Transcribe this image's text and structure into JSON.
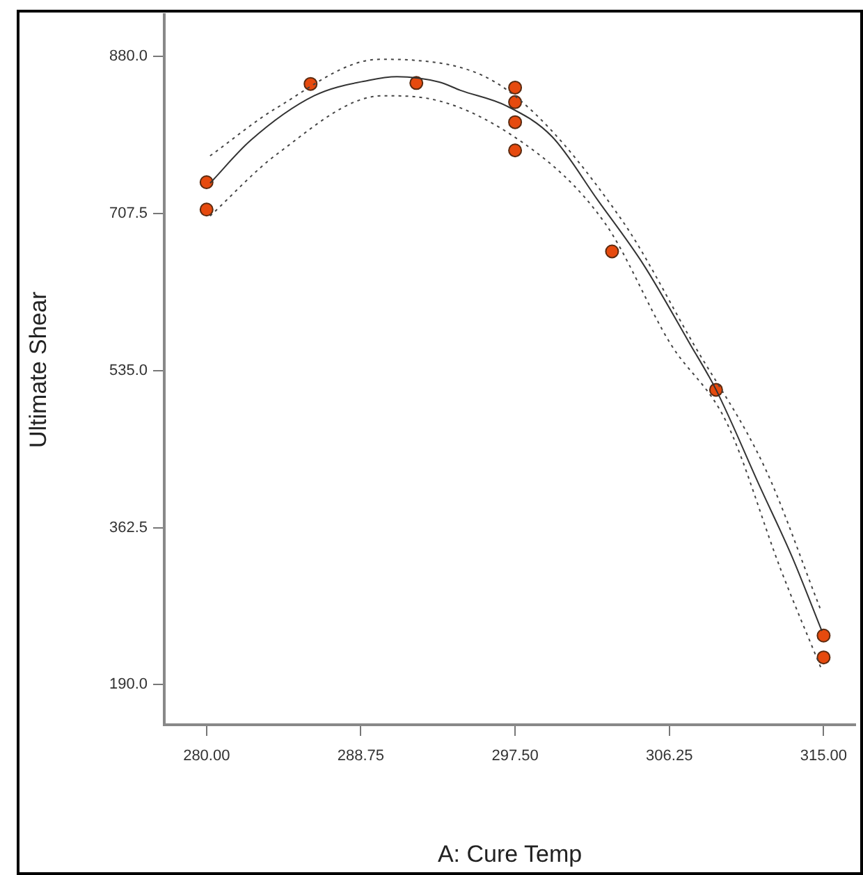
{
  "chart_data": {
    "type": "scatter",
    "xlabel": "A: Cure Temp",
    "ylabel": "Ultimate Shear",
    "xlim": [
      277.6,
      316.8
    ],
    "ylim": [
      146,
      926
    ],
    "xticks": [
      {
        "value": 280,
        "label": "280.00"
      },
      {
        "value": 288.75,
        "label": "288.75"
      },
      {
        "value": 297.5,
        "label": "297.50"
      },
      {
        "value": 306.25,
        "label": "306.25"
      },
      {
        "value": 315,
        "label": "315.00"
      }
    ],
    "yticks": [
      {
        "value": 190,
        "label": "190.0"
      },
      {
        "value": 362.5,
        "label": "362.5"
      },
      {
        "value": 535,
        "label": "535.0"
      },
      {
        "value": 707.5,
        "label": "707.5"
      },
      {
        "value": 880,
        "label": "880.0"
      }
    ],
    "grid": false,
    "legend": false,
    "series": [
      {
        "type": "line",
        "color": "#333333",
        "line_style": "solid",
        "marker": "none",
        "x": [
          280.2,
          282.5,
          286.1,
          289.2,
          290.8,
          293.2,
          294.4,
          297,
          299.6,
          302.2,
          304.8,
          307.4,
          308.9,
          311.4,
          313.2,
          314.9
        ],
        "values": [
          741,
          788,
          837,
          854,
          858,
          852,
          843,
          826,
          792,
          722,
          651,
          565,
          514,
          407,
          331,
          249
        ]
      },
      {
        "type": "line",
        "color": "#444444",
        "line_style": "dotted",
        "marker": "none",
        "x": [
          280.2,
          284,
          289.8,
          291.8,
          297,
          303.5,
          307.6,
          311.7,
          314.8
        ],
        "values": [
          771,
          824,
          877,
          876,
          844,
          702,
          565,
          427,
          274
        ]
      },
      {
        "type": "line",
        "color": "#444444",
        "line_style": "dotted",
        "marker": "none",
        "x": [
          280.2,
          284,
          290,
          291.8,
          297.9,
          302.6,
          306.3,
          309.5,
          312.6,
          314.9
        ],
        "values": [
          705,
          773,
          837,
          836,
          786,
          697,
          565,
          478,
          315,
          206
        ]
      },
      {
        "type": "scatter",
        "color": "#e64a0e",
        "marker": "circle",
        "x": [
          280,
          280,
          285.9,
          291.9,
          297.5,
          297.5,
          297.5,
          297.5,
          303,
          308.9,
          315,
          315
        ],
        "values": [
          742,
          712,
          850,
          851,
          846,
          830,
          808,
          777,
          666,
          514,
          244,
          220
        ]
      }
    ]
  }
}
